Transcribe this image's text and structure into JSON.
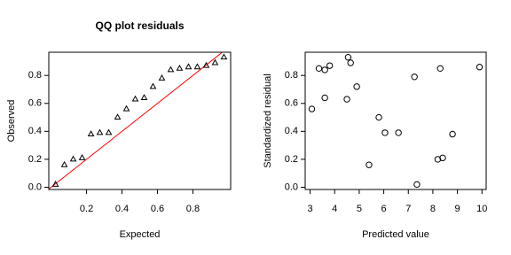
{
  "chart_data": [
    {
      "type": "scatter",
      "title": "QQ plot residuals",
      "xlabel": "Expected",
      "ylabel": "Observed",
      "marker": "triangle",
      "color": "#000000",
      "x": [
        0.025,
        0.075,
        0.125,
        0.175,
        0.225,
        0.275,
        0.325,
        0.375,
        0.425,
        0.475,
        0.525,
        0.575,
        0.625,
        0.675,
        0.725,
        0.775,
        0.825,
        0.875,
        0.925,
        0.975
      ],
      "values": [
        0.02,
        0.16,
        0.2,
        0.21,
        0.38,
        0.39,
        0.39,
        0.5,
        0.56,
        0.63,
        0.64,
        0.72,
        0.78,
        0.84,
        0.85,
        0.86,
        0.86,
        0.87,
        0.89,
        0.93
      ],
      "reference_line": {
        "intercept": 0,
        "slope": 1,
        "color": "#ff0000"
      },
      "xlim": [
        -0.013,
        1.013
      ],
      "ylim": [
        -0.016,
        0.966
      ],
      "xticks": [
        0.2,
        0.4,
        0.6,
        0.8
      ],
      "yticks": [
        {
          "value": 0,
          "label": "0.0"
        },
        0.2,
        0.4,
        0.6,
        0.8
      ]
    },
    {
      "type": "scatter",
      "xlabel": "Predicted value",
      "ylabel": "Standardized residual",
      "marker": "circle",
      "color": "#000000",
      "x": [
        3.07,
        3.36,
        3.6,
        3.6,
        3.8,
        4.55,
        4.5,
        4.65,
        4.9,
        5.4,
        5.8,
        6.05,
        6.6,
        7.25,
        7.35,
        8.2,
        8.4,
        8.3,
        8.8,
        9.9
      ],
      "values": [
        0.56,
        0.85,
        0.84,
        0.64,
        0.87,
        0.93,
        0.63,
        0.89,
        0.72,
        0.16,
        0.5,
        0.39,
        0.39,
        0.79,
        0.02,
        0.2,
        0.21,
        0.85,
        0.38,
        0.86
      ],
      "xlim": [
        2.8,
        10.17
      ],
      "ylim": [
        -0.016,
        0.966
      ],
      "xticks": [
        3,
        4,
        5,
        6,
        7,
        8,
        9,
        10
      ],
      "yticks": [
        {
          "value": 0,
          "label": "0.0"
        },
        0.2,
        0.4,
        0.6,
        0.8
      ]
    }
  ]
}
